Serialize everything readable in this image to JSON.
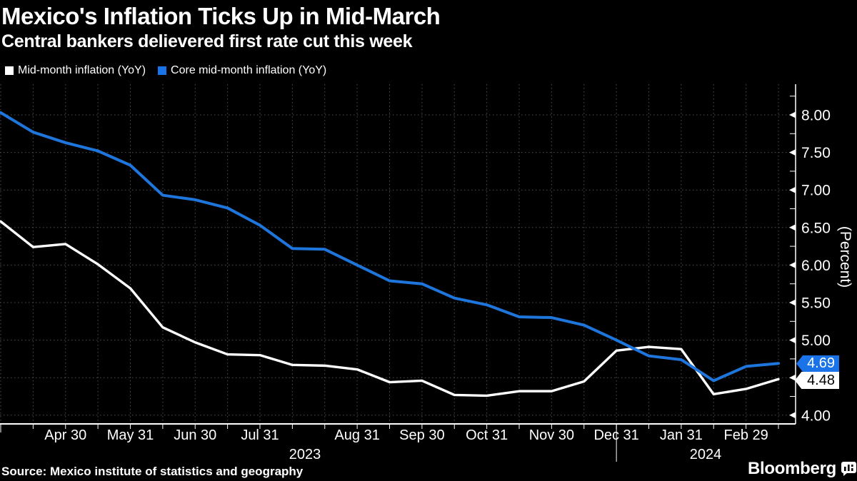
{
  "header": {
    "title": "Mexico's Inflation Ticks Up in Mid-March",
    "subtitle": "Central bankers delievered first rate cut this week"
  },
  "legend": [
    {
      "label": "Mid-month inflation (YoY)",
      "color": "#ffffff"
    },
    {
      "label": "Core mid-month inflation (YoY)",
      "color": "#1a73e8"
    }
  ],
  "chart_data": {
    "type": "line",
    "title": "Mexico's Inflation Ticks Up in Mid-March",
    "subtitle": "Central bankers delievered first rate cut this week",
    "ylabel": "(Percent)",
    "ylim": [
      3.88,
      8.41
    ],
    "y_ticks": [
      4.0,
      4.5,
      5.0,
      5.5,
      6.0,
      6.5,
      7.0,
      7.5,
      8.0
    ],
    "grid": true,
    "legend_position": "top-left",
    "x_tick_count": 25,
    "x_tick_labels": [
      {
        "label": "Apr 30",
        "index": 2
      },
      {
        "label": "May 31",
        "index": 4
      },
      {
        "label": "Jun 30",
        "index": 6
      },
      {
        "label": "Jul 31",
        "index": 8
      },
      {
        "label": "Aug 31",
        "index": 11
      },
      {
        "label": "Sep 30",
        "index": 13
      },
      {
        "label": "Oct 31",
        "index": 15
      },
      {
        "label": "Nov 30",
        "index": 17
      },
      {
        "label": "Dec 31",
        "index": 19
      },
      {
        "label": "Jan 31",
        "index": 21
      },
      {
        "label": "Feb 29",
        "index": 23
      }
    ],
    "year_labels": [
      {
        "label": "2023",
        "x": 427
      },
      {
        "label": "2024",
        "x": 988
      }
    ],
    "year_separator_index": 19,
    "series": [
      {
        "name": "Mid-month inflation (YoY)",
        "color": "#ffffff",
        "width": 3.4,
        "values": [
          6.58,
          6.24,
          6.28,
          6.01,
          5.69,
          5.17,
          4.97,
          4.81,
          4.8,
          4.67,
          4.66,
          4.61,
          4.44,
          4.46,
          4.27,
          4.26,
          4.32,
          4.32,
          4.45,
          4.86,
          4.91,
          4.88,
          4.28,
          4.35,
          4.48
        ]
      },
      {
        "name": "Core mid-month inflation (YoY)",
        "color": "#1e76dd",
        "width": 4,
        "values": [
          8.03,
          7.77,
          7.63,
          7.52,
          7.33,
          6.93,
          6.87,
          6.76,
          6.53,
          6.22,
          6.21,
          6.0,
          5.79,
          5.75,
          5.56,
          5.47,
          5.31,
          5.3,
          5.2,
          5.0,
          4.79,
          4.74,
          4.46,
          4.65,
          4.69
        ]
      }
    ],
    "end_labels": [
      {
        "value": "4.69",
        "series": "Core mid-month inflation (YoY)",
        "bg": "#1a73e8",
        "fg": "#ffffff"
      },
      {
        "value": "4.48",
        "series": "Mid-month inflation (YoY)",
        "bg": "#ffffff",
        "fg": "#000000"
      }
    ],
    "colors": {
      "grid": "#4f4f4f",
      "axis": "#ffffff",
      "background": "#000000"
    }
  },
  "footer": {
    "source": "Source: Mexico institute of statistics and geography",
    "brand": "Bloomberg"
  }
}
